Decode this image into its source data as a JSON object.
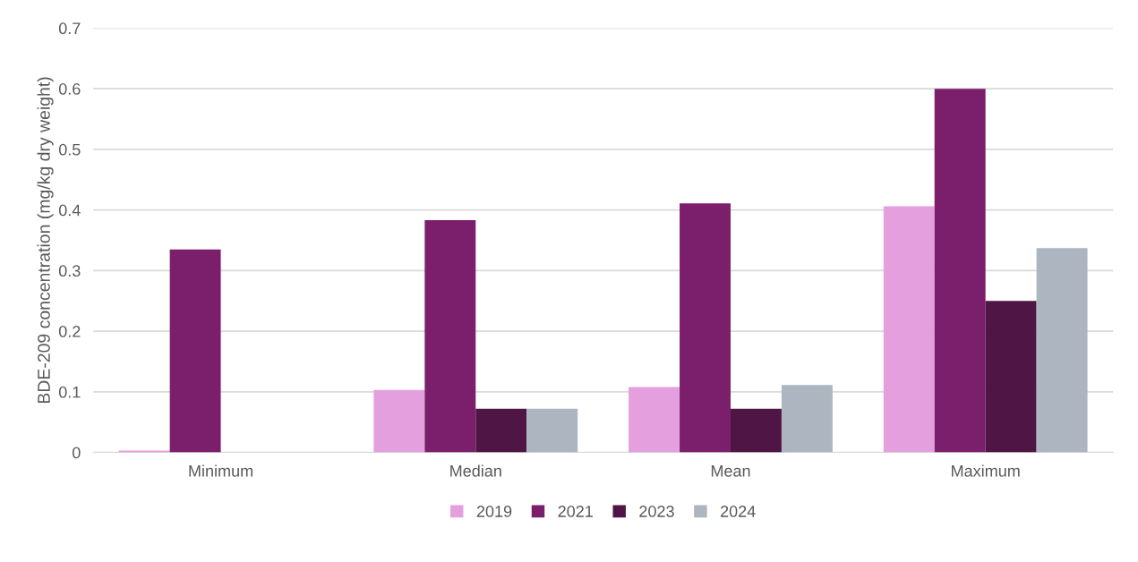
{
  "chart_data": {
    "type": "bar",
    "ylabel": "BDE-209 concentration (mg/kg dry weight)",
    "categories": [
      "Minimum",
      "Median",
      "Mean",
      "Maximum"
    ],
    "series": [
      {
        "name": "2019",
        "color": "#e4a0de",
        "values": [
          0.003,
          0.103,
          0.108,
          0.406
        ]
      },
      {
        "name": "2021",
        "color": "#7b1f6c",
        "values": [
          0.335,
          0.383,
          0.411,
          0.6
        ]
      },
      {
        "name": "2023",
        "color": "#4f1545",
        "values": [
          0,
          0.072,
          0.072,
          0.25
        ]
      },
      {
        "name": "2024",
        "color": "#adb5c1",
        "values": [
          0,
          0.072,
          0.111,
          0.337
        ]
      }
    ],
    "ylim": [
      0,
      0.7
    ],
    "yticks": [
      {
        "value": 0,
        "label": "0"
      },
      0.1,
      0.2,
      0.3,
      0.4,
      0.5,
      0.6,
      0.7
    ],
    "grid": "y",
    "legend": "bottom"
  }
}
